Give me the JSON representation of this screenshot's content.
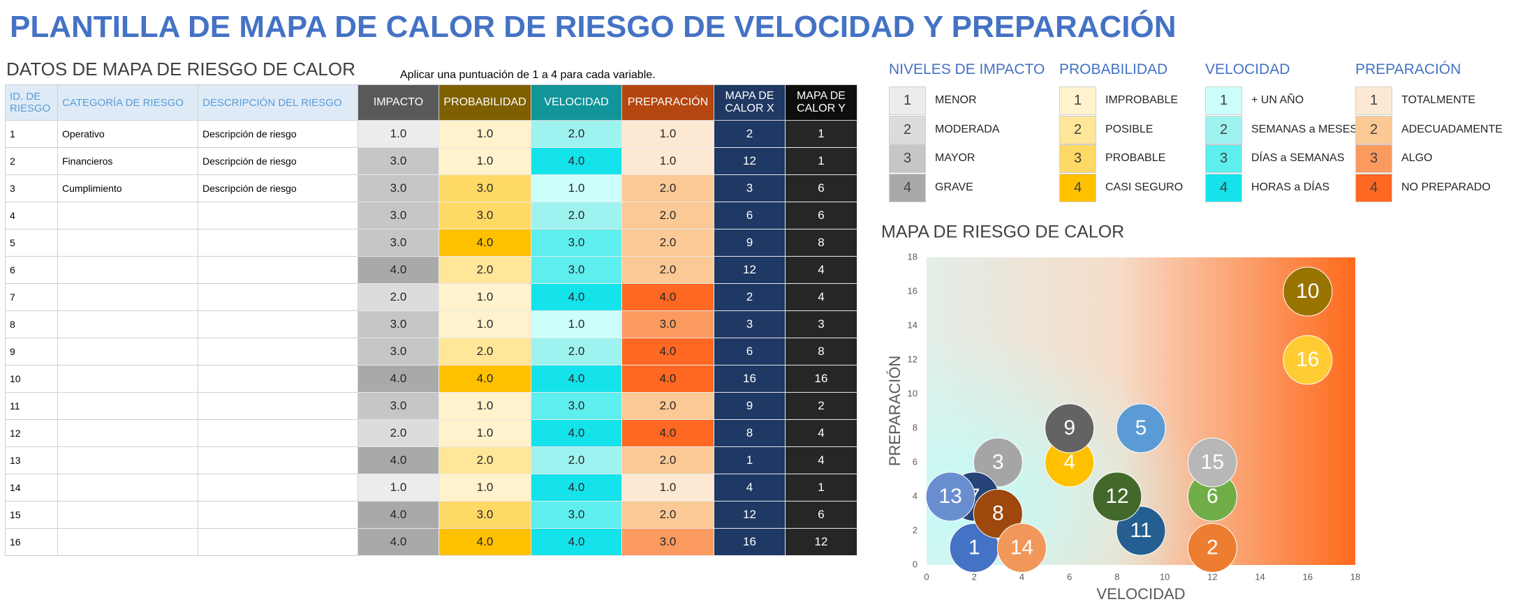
{
  "title": "PLANTILLA DE MAPA DE CALOR DE RIESGO DE VELOCIDAD Y PREPARACIÓN",
  "table": {
    "title": "DATOS DE MAPA DE RIESGO DE CALOR",
    "note": "Aplicar una puntuación de 1 a 4 para cada variable.",
    "headers": [
      "ID. DE RIESGO",
      "CATEGORÍA DE RIESGO",
      "DESCRIPCIÓN DEL RIESGO",
      "IMPACTO",
      "PROBABILIDAD",
      "VELOCIDAD",
      "PREPARACIÓN",
      "MAPA DE CALOR X",
      "MAPA DE CALOR Y"
    ],
    "rows": [
      [
        "1",
        "Operativo",
        "Descripción de riesgo",
        "1.0",
        "1.0",
        "2.0",
        "1.0",
        "2",
        "1"
      ],
      [
        "2",
        "Financieros",
        "Descripción de riesgo",
        "3.0",
        "1.0",
        "4.0",
        "1.0",
        "12",
        "1"
      ],
      [
        "3",
        "Cumplimiento",
        "Descripción de riesgo",
        "3.0",
        "3.0",
        "1.0",
        "2.0",
        "3",
        "6"
      ],
      [
        "4",
        null,
        null,
        "3.0",
        "3.0",
        "2.0",
        "2.0",
        "6",
        "6"
      ],
      [
        "5",
        null,
        null,
        "3.0",
        "4.0",
        "3.0",
        "2.0",
        "9",
        "8"
      ],
      [
        "6",
        null,
        null,
        "4.0",
        "2.0",
        "3.0",
        "2.0",
        "12",
        "4"
      ],
      [
        "7",
        null,
        null,
        "2.0",
        "1.0",
        "4.0",
        "4.0",
        "2",
        "4"
      ],
      [
        "8",
        null,
        null,
        "3.0",
        "1.0",
        "1.0",
        "3.0",
        "3",
        "3"
      ],
      [
        "9",
        null,
        null,
        "3.0",
        "2.0",
        "2.0",
        "4.0",
        "6",
        "8"
      ],
      [
        "10",
        null,
        null,
        "4.0",
        "4.0",
        "4.0",
        "4.0",
        "16",
        "16"
      ],
      [
        "11",
        null,
        null,
        "3.0",
        "1.0",
        "3.0",
        "2.0",
        "9",
        "2"
      ],
      [
        "12",
        null,
        null,
        "2.0",
        "1.0",
        "4.0",
        "4.0",
        "8",
        "4"
      ],
      [
        "13",
        null,
        null,
        "4.0",
        "2.0",
        "2.0",
        "2.0",
        "1",
        "4"
      ],
      [
        "14",
        null,
        null,
        "1.0",
        "1.0",
        "4.0",
        "1.0",
        "4",
        "1"
      ],
      [
        "15",
        null,
        null,
        "4.0",
        "3.0",
        "3.0",
        "2.0",
        "12",
        "6"
      ],
      [
        "16",
        null,
        null,
        "4.0",
        "4.0",
        "4.0",
        "3.0",
        "16",
        "12"
      ]
    ]
  },
  "legends": [
    {
      "title": "NIVELES DE IMPACTO",
      "items": [
        {
          "level": "1",
          "label": "MENOR",
          "color": "#ececec"
        },
        {
          "level": "2",
          "label": "MODERADA",
          "color": "#dcdcdc"
        },
        {
          "level": "3",
          "label": "MAYOR",
          "color": "#c6c6c6"
        },
        {
          "level": "4",
          "label": "GRAVE",
          "color": "#a9a9a9"
        }
      ]
    },
    {
      "title": "PROBABILIDAD",
      "items": [
        {
          "level": "1",
          "label": "IMPROBABLE",
          "color": "#fff2cc"
        },
        {
          "level": "2",
          "label": "POSIBLE",
          "color": "#ffe699"
        },
        {
          "level": "3",
          "label": "PROBABLE",
          "color": "#ffd966"
        },
        {
          "level": "4",
          "label": "CASI SEGURO",
          "color": "#ffc000"
        }
      ]
    },
    {
      "title": "VELOCIDAD",
      "items": [
        {
          "level": "1",
          "label": "+ UN AÑO",
          "color": "#ccfffb"
        },
        {
          "level": "2",
          "label": "SEMANAS a MESES",
          "color": "#9ef3f0"
        },
        {
          "level": "3",
          "label": "DÍAS a SEMANAS",
          "color": "#5eeeee"
        },
        {
          "level": "4",
          "label": "HORAS a DÍAS",
          "color": "#14e3ec"
        }
      ]
    },
    {
      "title": "PREPARACIÓN",
      "items": [
        {
          "level": "1",
          "label": "TOTALMENTE",
          "color": "#fde9d3"
        },
        {
          "level": "2",
          "label": "ADECUADAMENTE",
          "color": "#fbc995"
        },
        {
          "level": "3",
          "label": "ALGO",
          "color": "#fb9a5f"
        },
        {
          "level": "4",
          "label": "NO PREPARADO",
          "color": "#ff6822"
        }
      ]
    }
  ],
  "chart_data": {
    "type": "scatter",
    "title": "MAPA DE RIESGO DE CALOR",
    "x_label": "VELOCIDAD",
    "y_label": "PREPARACIÓN",
    "labels": [
      "1",
      "2",
      "3",
      "4",
      "5",
      "6",
      "7",
      "8",
      "9",
      "10",
      "11",
      "12",
      "13",
      "14",
      "15",
      "16"
    ],
    "x": [
      2,
      12,
      3,
      6,
      9,
      12,
      2,
      3,
      6,
      16,
      9,
      8,
      1,
      4,
      12,
      16
    ],
    "values": [
      1,
      1,
      6,
      6,
      8,
      4,
      4,
      3,
      8,
      16,
      2,
      4,
      4,
      1,
      6,
      12
    ],
    "colors": [
      "#4472c4",
      "#ed7d31",
      "#a5a5a5",
      "#ffc000",
      "#5b9bd5",
      "#70ad47",
      "#264478",
      "#9e480e",
      "#636363",
      "#997300",
      "#255e91",
      "#43682b",
      "#698ed0",
      "#f1975a",
      "#b7b7b7",
      "#ffcd33"
    ],
    "xlim": [
      0,
      18
    ],
    "ylim": [
      0,
      18
    ],
    "xticks": [
      0,
      2,
      4,
      6,
      8,
      10,
      12,
      14,
      16,
      18
    ],
    "yticks": [
      0,
      2,
      4,
      6,
      8,
      10,
      12,
      14,
      16,
      18
    ]
  }
}
